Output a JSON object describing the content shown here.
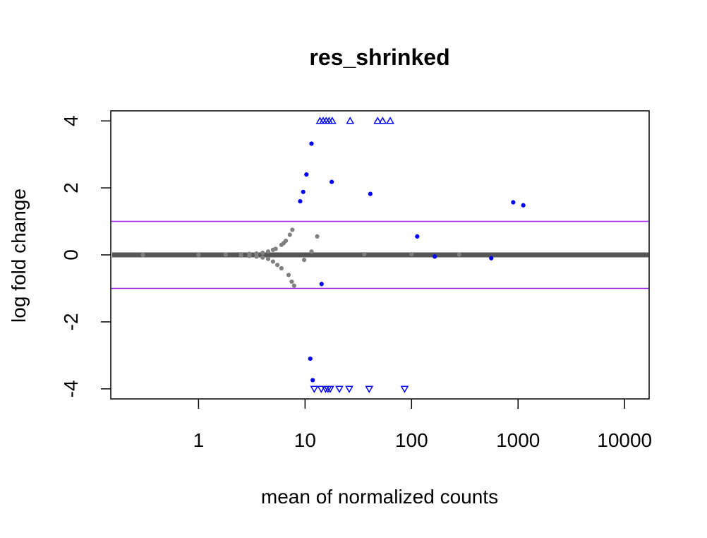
{
  "chart_data": {
    "type": "scatter",
    "title": "res_shrinked",
    "xlabel": "mean of normalized counts",
    "ylabel": "log fold change",
    "x_scale": "log10",
    "xlim": [
      0.15,
      17000
    ],
    "ylim": [
      -4.3,
      4.3
    ],
    "x_ticks": [
      {
        "value": 1,
        "label": "1"
      },
      {
        "value": 10,
        "label": "10"
      },
      {
        "value": 100,
        "label": "100"
      },
      {
        "value": 1000,
        "label": "1000"
      },
      {
        "value": 10000,
        "label": "10000"
      }
    ],
    "y_ticks": [
      {
        "value": 4,
        "label": "4"
      },
      {
        "value": 2,
        "label": "2"
      },
      {
        "value": 0,
        "label": "0"
      },
      {
        "value": -2,
        "label": "-2"
      },
      {
        "value": -4,
        "label": "-4"
      }
    ],
    "reference_lines": {
      "y": [
        1,
        -1
      ],
      "color": "#a020f0"
    },
    "colors": {
      "non_significant": "#808080",
      "baseline_band": "#555555",
      "significant": "#0000ff",
      "reference_line": "#a020f0",
      "frame": "#000000"
    },
    "series": [
      {
        "name": "",
        "role": "non-significant",
        "marker": "point",
        "points": [
          {
            "x": 0.3,
            "y": 0.0
          },
          {
            "x": 1.0,
            "y": 0.0
          },
          {
            "x": 1.8,
            "y": 0.01
          },
          {
            "x": 2.5,
            "y": 0.02
          },
          {
            "x": 3.0,
            "y": 0.03
          },
          {
            "x": 3.5,
            "y": 0.04
          },
          {
            "x": 4.0,
            "y": 0.06
          },
          {
            "x": 4.5,
            "y": 0.1
          },
          {
            "x": 5.0,
            "y": 0.15
          },
          {
            "x": 5.3,
            "y": 0.18
          },
          {
            "x": 6.0,
            "y": 0.3
          },
          {
            "x": 6.3,
            "y": 0.35
          },
          {
            "x": 6.6,
            "y": 0.42
          },
          {
            "x": 7.2,
            "y": 0.6
          },
          {
            "x": 7.6,
            "y": 0.75
          },
          {
            "x": 2.5,
            "y": -0.02
          },
          {
            "x": 3.0,
            "y": -0.03
          },
          {
            "x": 3.5,
            "y": -0.05
          },
          {
            "x": 4.0,
            "y": -0.08
          },
          {
            "x": 4.5,
            "y": -0.12
          },
          {
            "x": 5.0,
            "y": -0.2
          },
          {
            "x": 5.5,
            "y": -0.3
          },
          {
            "x": 6.0,
            "y": -0.4
          },
          {
            "x": 7.0,
            "y": -0.6
          },
          {
            "x": 7.5,
            "y": -0.8
          },
          {
            "x": 7.9,
            "y": -0.92
          },
          {
            "x": 9.8,
            "y": -0.15
          },
          {
            "x": 11.5,
            "y": 0.1
          },
          {
            "x": 13.0,
            "y": 0.55
          },
          {
            "x": 36,
            "y": 0.02
          },
          {
            "x": 100,
            "y": 0.02
          },
          {
            "x": 280,
            "y": 0.01
          }
        ]
      },
      {
        "name": "",
        "role": "significant",
        "marker": "point",
        "points": [
          {
            "x": 11.5,
            "y": 3.32
          },
          {
            "x": 10.3,
            "y": 2.4
          },
          {
            "x": 17.8,
            "y": 2.18
          },
          {
            "x": 9.6,
            "y": 1.88
          },
          {
            "x": 9.0,
            "y": 1.6
          },
          {
            "x": 41,
            "y": 1.82
          },
          {
            "x": 900,
            "y": 1.57
          },
          {
            "x": 1120,
            "y": 1.48
          },
          {
            "x": 113,
            "y": 0.55
          },
          {
            "x": 14.3,
            "y": -0.87
          },
          {
            "x": 165,
            "y": -0.05
          },
          {
            "x": 560,
            "y": -0.1
          },
          {
            "x": 11.2,
            "y": -3.1
          },
          {
            "x": 11.8,
            "y": -3.74
          }
        ]
      },
      {
        "name": "",
        "role": "significant, out of range above",
        "marker": "triangle-up",
        "points": [
          {
            "x": 13.8,
            "y": 4
          },
          {
            "x": 14.8,
            "y": 4
          },
          {
            "x": 15.8,
            "y": 4
          },
          {
            "x": 16.8,
            "y": 4
          },
          {
            "x": 18.0,
            "y": 4
          },
          {
            "x": 26.5,
            "y": 4
          },
          {
            "x": 48,
            "y": 4
          },
          {
            "x": 53.5,
            "y": 4
          },
          {
            "x": 63,
            "y": 4
          }
        ]
      },
      {
        "name": "",
        "role": "significant, out of range below",
        "marker": "triangle-down",
        "points": [
          {
            "x": 12.2,
            "y": -4
          },
          {
            "x": 14.2,
            "y": -4
          },
          {
            "x": 15.6,
            "y": -4
          },
          {
            "x": 16.4,
            "y": -4
          },
          {
            "x": 17.2,
            "y": -4
          },
          {
            "x": 21,
            "y": -4
          },
          {
            "x": 26,
            "y": -4
          },
          {
            "x": 40,
            "y": -4
          },
          {
            "x": 86,
            "y": -4
          }
        ]
      }
    ]
  }
}
